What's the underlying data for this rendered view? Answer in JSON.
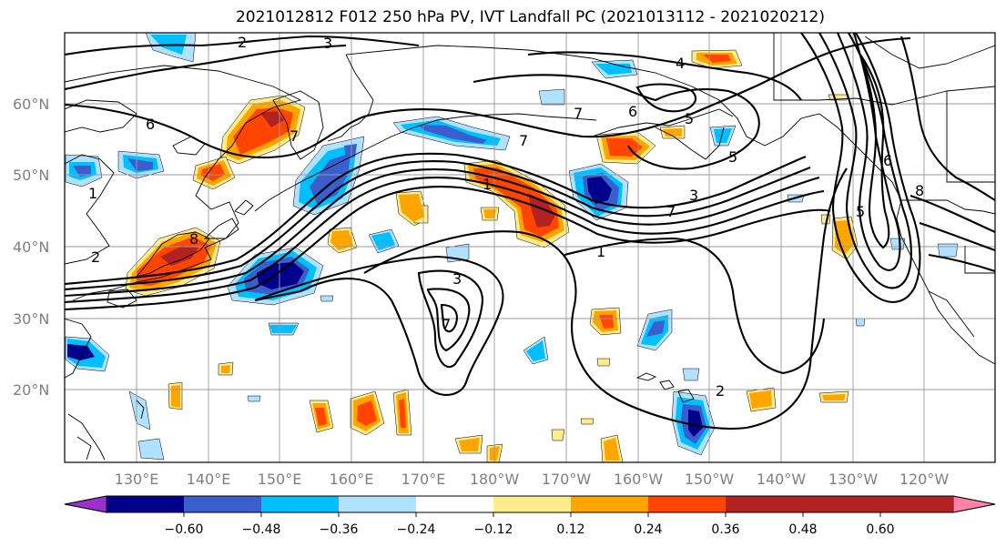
{
  "title": "2021012812 F012 250 hPa PV, IVT Landfall PC (2021013112 - 2021020212)",
  "lat_labels": [
    "60°N",
    "50°N",
    "40°N",
    "30°N",
    "20°N"
  ],
  "lon_labels": [
    "130°E",
    "140°E",
    "150°E",
    "160°E",
    "170°E",
    "180°W",
    "170°W",
    "160°W",
    "150°W",
    "140°W",
    "130°W",
    "120°W"
  ],
  "colorbar": {
    "colors": [
      "#9932CC",
      "#00008B",
      "#3A5FCD",
      "#00BFFF",
      "#B0E2FF",
      "#FFFFFF",
      "#FFEC8B",
      "#FFA500",
      "#FF4500",
      "#B22222",
      "#FF82AB"
    ],
    "labels": [
      "−0.60",
      "−0.48",
      "−0.36",
      "−0.24",
      "−0.12",
      "0.12",
      "0.24",
      "0.36",
      "0.48",
      "0.60"
    ]
  },
  "contour_labels": [
    "2",
    "3",
    "4",
    "6",
    "7",
    "7",
    "7",
    "5",
    "5",
    "6",
    "8",
    "2",
    "1",
    "3",
    "7",
    "1",
    "3",
    "7",
    "2",
    "1",
    "6",
    "5",
    "8"
  ]
}
